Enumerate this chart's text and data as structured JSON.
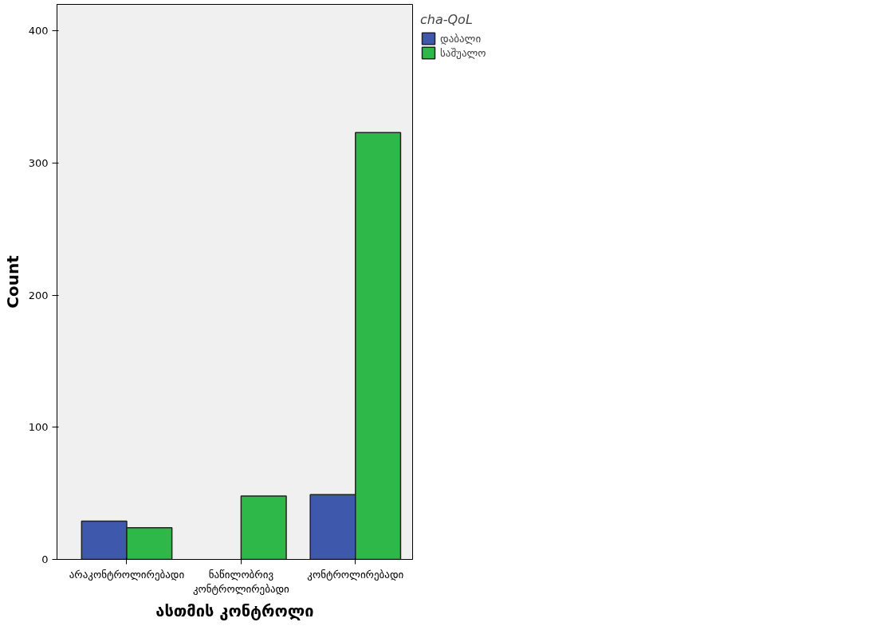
{
  "chart_data": {
    "type": "bar",
    "categories": [
      "არაკონტროლირებადი",
      "ნაწილობრივ კონტროლირებადი",
      "კონტროლირებადი"
    ],
    "series": [
      {
        "name": "დაბალი",
        "color": "#3e58ac",
        "values": [
          29,
          null,
          49
        ]
      },
      {
        "name": "საშუალო",
        "color": "#2eb84a",
        "values": [
          24,
          48,
          323
        ]
      }
    ],
    "xlabel": "ასთმის კონტროლი",
    "ylabel": "Count",
    "legend_title": "cha-QoL",
    "legend": "top right",
    "ylim": [
      0,
      420
    ],
    "yticks": [
      0,
      100,
      200,
      300,
      400
    ],
    "grid": false
  }
}
